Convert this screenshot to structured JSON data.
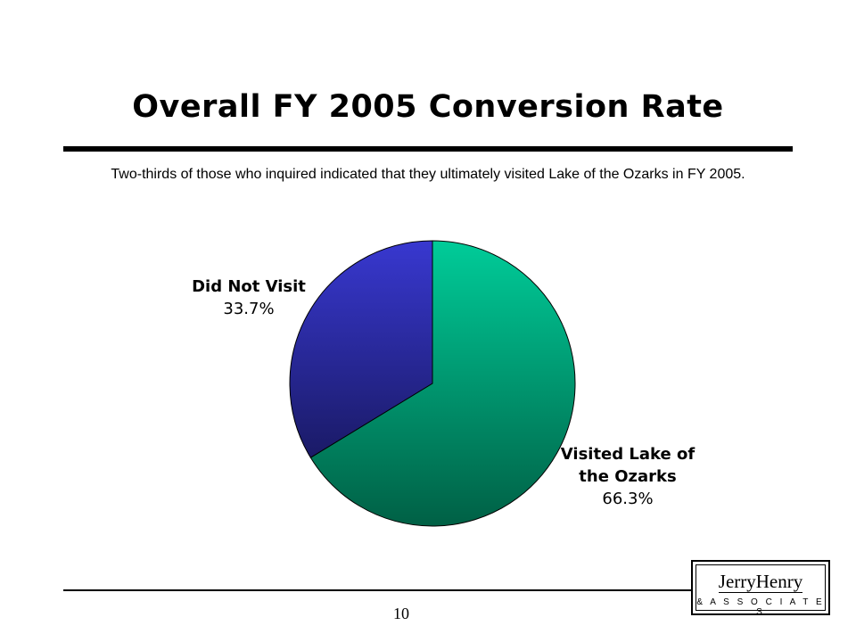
{
  "slide": {
    "title": "Overall FY 2005 Conversion Rate",
    "subtitle": "Two-thirds of those who inquired indicated that they ultimately visited Lake of the Ozarks in FY 2005.",
    "page_number": "10"
  },
  "logo": {
    "name": "JerryHenry",
    "sub": "& A S S O C I A T E S"
  },
  "chart_data": {
    "type": "pie",
    "title": "Overall FY 2005 Conversion Rate",
    "slices": [
      {
        "label_lines": [
          "Visited Lake of",
          "the Ozarks"
        ],
        "value_label": "66.3%",
        "value": 66.3,
        "color_light": "#00cc99",
        "color_dark": "#006045"
      },
      {
        "label_lines": [
          "Did Not Visit"
        ],
        "value_label": "33.7%",
        "value": 33.7,
        "color_light": "#3838d0",
        "color_dark": "#1a1a66"
      }
    ]
  }
}
